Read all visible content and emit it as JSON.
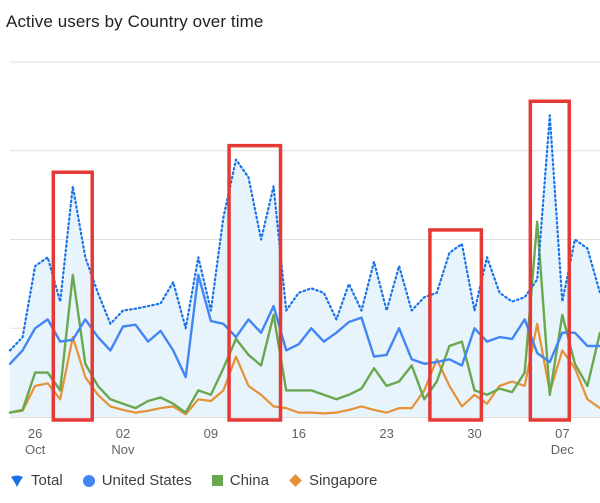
{
  "title": "Active users by Country over time",
  "colors": {
    "total": "#1a73e8",
    "total_fill": "#e8f4fb",
    "united_states": "#4285f4",
    "china": "#6aa84f",
    "singapore": "#e69138",
    "highlight": "#e53935",
    "grid": "#e0e0e0"
  },
  "legend": [
    {
      "name": "Total",
      "icon": "drop-icon",
      "color": "#1a73e8"
    },
    {
      "name": "United States",
      "icon": "circle-icon",
      "color": "#4285f4"
    },
    {
      "name": "China",
      "icon": "square-icon",
      "color": "#6aa84f"
    },
    {
      "name": "Singapore",
      "icon": "diamond-icon",
      "color": "#e69138"
    }
  ],
  "chart_data": {
    "type": "line",
    "title": "Active users by Country over time",
    "x": [
      "Oct 24",
      "Oct 25",
      "Oct 26",
      "Oct 27",
      "Oct 28",
      "Oct 29",
      "Oct 30",
      "Oct 31",
      "Nov 01",
      "Nov 02",
      "Nov 03",
      "Nov 04",
      "Nov 05",
      "Nov 06",
      "Nov 07",
      "Nov 08",
      "Nov 09",
      "Nov 10",
      "Nov 11",
      "Nov 12",
      "Nov 13",
      "Nov 14",
      "Nov 15",
      "Nov 16",
      "Nov 17",
      "Nov 18",
      "Nov 19",
      "Nov 20",
      "Nov 21",
      "Nov 22",
      "Nov 23",
      "Nov 24",
      "Nov 25",
      "Nov 26",
      "Nov 27",
      "Nov 28",
      "Nov 29",
      "Nov 30",
      "Dec 01",
      "Dec 02",
      "Dec 03",
      "Dec 04",
      "Dec 05",
      "Dec 06",
      "Dec 07",
      "Dec 08",
      "Dec 09",
      "Dec 10"
    ],
    "x_ticks": [
      {
        "index": 2,
        "day": "26",
        "month": "Oct"
      },
      {
        "index": 9,
        "day": "02",
        "month": "Nov"
      },
      {
        "index": 16,
        "day": "09",
        "month": ""
      },
      {
        "index": 23,
        "day": "16",
        "month": ""
      },
      {
        "index": 30,
        "day": "23",
        "month": ""
      },
      {
        "index": 37,
        "day": "30",
        "month": ""
      },
      {
        "index": 44,
        "day": "07",
        "month": "Dec"
      }
    ],
    "ylim": [
      0,
      4
    ],
    "grid": true,
    "legend_position": "bottom",
    "series": [
      {
        "name": "Total",
        "style": "dotted-area",
        "values": [
          0.75,
          0.9,
          1.7,
          1.8,
          1.3,
          2.6,
          1.8,
          1.4,
          1.05,
          1.2,
          1.22,
          1.25,
          1.28,
          1.52,
          1.0,
          1.8,
          1.2,
          2.25,
          2.9,
          2.7,
          2.0,
          2.6,
          1.2,
          1.4,
          1.45,
          1.4,
          1.1,
          1.5,
          1.2,
          1.75,
          1.2,
          1.7,
          1.2,
          1.35,
          1.4,
          1.85,
          1.95,
          1.2,
          1.8,
          1.4,
          1.3,
          1.35,
          1.55,
          3.4,
          1.3,
          2.0,
          1.9,
          1.4
        ]
      },
      {
        "name": "United States",
        "values": [
          0.6,
          0.75,
          1.0,
          1.1,
          0.85,
          0.87,
          1.1,
          0.9,
          0.75,
          1.02,
          1.04,
          0.85,
          0.97,
          0.75,
          0.45,
          1.6,
          1.08,
          1.05,
          0.9,
          1.1,
          0.95,
          1.25,
          0.75,
          0.82,
          1.0,
          0.85,
          0.95,
          1.07,
          1.12,
          0.68,
          0.7,
          1.0,
          0.65,
          0.6,
          0.62,
          0.65,
          0.58,
          1.0,
          0.85,
          0.9,
          0.88,
          1.1,
          0.72,
          0.62,
          0.95,
          0.95,
          0.8,
          0.8
        ]
      },
      {
        "name": "China",
        "values": [
          0.05,
          0.08,
          0.5,
          0.5,
          0.3,
          1.6,
          0.6,
          0.35,
          0.2,
          0.15,
          0.1,
          0.18,
          0.22,
          0.15,
          0.05,
          0.3,
          0.25,
          0.55,
          0.88,
          0.7,
          0.58,
          1.15,
          0.3,
          0.3,
          0.3,
          0.25,
          0.2,
          0.25,
          0.32,
          0.55,
          0.35,
          0.4,
          0.58,
          0.2,
          0.4,
          0.8,
          0.85,
          0.3,
          0.25,
          0.32,
          0.28,
          0.5,
          2.2,
          0.25,
          1.15,
          0.6,
          0.35,
          0.95
        ]
      },
      {
        "name": "Singapore",
        "values": [
          0.05,
          0.07,
          0.35,
          0.38,
          0.2,
          0.9,
          0.45,
          0.25,
          0.12,
          0.08,
          0.05,
          0.07,
          0.1,
          0.12,
          0.03,
          0.2,
          0.18,
          0.3,
          0.68,
          0.35,
          0.25,
          0.12,
          0.1,
          0.05,
          0.05,
          0.04,
          0.05,
          0.08,
          0.12,
          0.08,
          0.05,
          0.1,
          0.1,
          0.3,
          0.65,
          0.35,
          0.12,
          0.25,
          0.15,
          0.35,
          0.4,
          0.35,
          1.05,
          0.28,
          0.75,
          0.55,
          0.2,
          0.1
        ]
      }
    ],
    "highlights": [
      {
        "from": 4,
        "to": 6
      },
      {
        "from": 18,
        "to": 21
      },
      {
        "from": 34,
        "to": 37
      },
      {
        "from": 42,
        "to": 44
      }
    ]
  }
}
